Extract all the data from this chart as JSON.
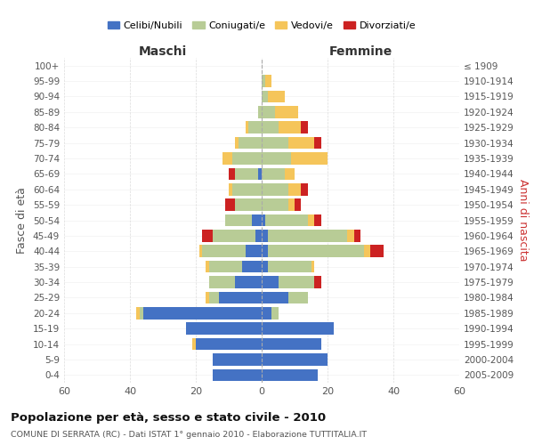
{
  "age_groups": [
    "100+",
    "95-99",
    "90-94",
    "85-89",
    "80-84",
    "75-79",
    "70-74",
    "65-69",
    "60-64",
    "55-59",
    "50-54",
    "45-49",
    "40-44",
    "35-39",
    "30-34",
    "25-29",
    "20-24",
    "15-19",
    "10-14",
    "5-9",
    "0-4"
  ],
  "birth_years": [
    "≤ 1909",
    "1910-1914",
    "1915-1919",
    "1920-1924",
    "1925-1929",
    "1930-1934",
    "1935-1939",
    "1940-1944",
    "1945-1949",
    "1950-1954",
    "1955-1959",
    "1960-1964",
    "1965-1969",
    "1970-1974",
    "1975-1979",
    "1980-1984",
    "1985-1989",
    "1990-1994",
    "1995-1999",
    "2000-2004",
    "2005-2009"
  ],
  "maschi": {
    "celibi": [
      0,
      0,
      0,
      0,
      0,
      0,
      0,
      1,
      0,
      0,
      3,
      2,
      5,
      6,
      8,
      13,
      36,
      23,
      20,
      15,
      15
    ],
    "coniugati": [
      0,
      0,
      0,
      1,
      4,
      7,
      9,
      7,
      9,
      8,
      8,
      13,
      13,
      10,
      8,
      3,
      1,
      0,
      0,
      0,
      0
    ],
    "vedovi": [
      0,
      0,
      0,
      0,
      1,
      1,
      3,
      0,
      1,
      0,
      0,
      0,
      1,
      1,
      0,
      1,
      1,
      0,
      1,
      0,
      0
    ],
    "divorziati": [
      0,
      0,
      0,
      0,
      0,
      0,
      0,
      2,
      0,
      3,
      0,
      3,
      0,
      0,
      0,
      0,
      0,
      0,
      0,
      0,
      0
    ]
  },
  "femmine": {
    "nubili": [
      0,
      0,
      0,
      0,
      0,
      0,
      0,
      0,
      0,
      0,
      1,
      2,
      2,
      2,
      5,
      8,
      3,
      22,
      18,
      20,
      17
    ],
    "coniugate": [
      0,
      1,
      2,
      4,
      5,
      8,
      9,
      7,
      8,
      8,
      13,
      24,
      29,
      13,
      11,
      6,
      2,
      0,
      0,
      0,
      0
    ],
    "vedove": [
      0,
      2,
      5,
      7,
      7,
      8,
      11,
      3,
      4,
      2,
      2,
      2,
      2,
      1,
      0,
      0,
      0,
      0,
      0,
      0,
      0
    ],
    "divorziate": [
      0,
      0,
      0,
      0,
      2,
      2,
      0,
      0,
      2,
      2,
      2,
      2,
      4,
      0,
      2,
      0,
      0,
      0,
      0,
      0,
      0
    ]
  },
  "colors": {
    "celibi": "#4472c4",
    "coniugati": "#b8cc96",
    "vedovi": "#f5c55a",
    "divorziati": "#cc2222"
  },
  "title": "Popolazione per età, sesso e stato civile - 2010",
  "subtitle": "COMUNE DI SERRATA (RC) - Dati ISTAT 1° gennaio 2010 - Elaborazione TUTTITALIA.IT",
  "xlabel_left": "Maschi",
  "xlabel_right": "Femmine",
  "ylabel_left": "Fasce di età",
  "ylabel_right": "Anni di nascita",
  "xlim": 60,
  "legend_labels": [
    "Celibi/Nubili",
    "Coniugati/e",
    "Vedovi/e",
    "Divorziati/e"
  ],
  "background_color": "#ffffff",
  "grid_color": "#cccccc"
}
